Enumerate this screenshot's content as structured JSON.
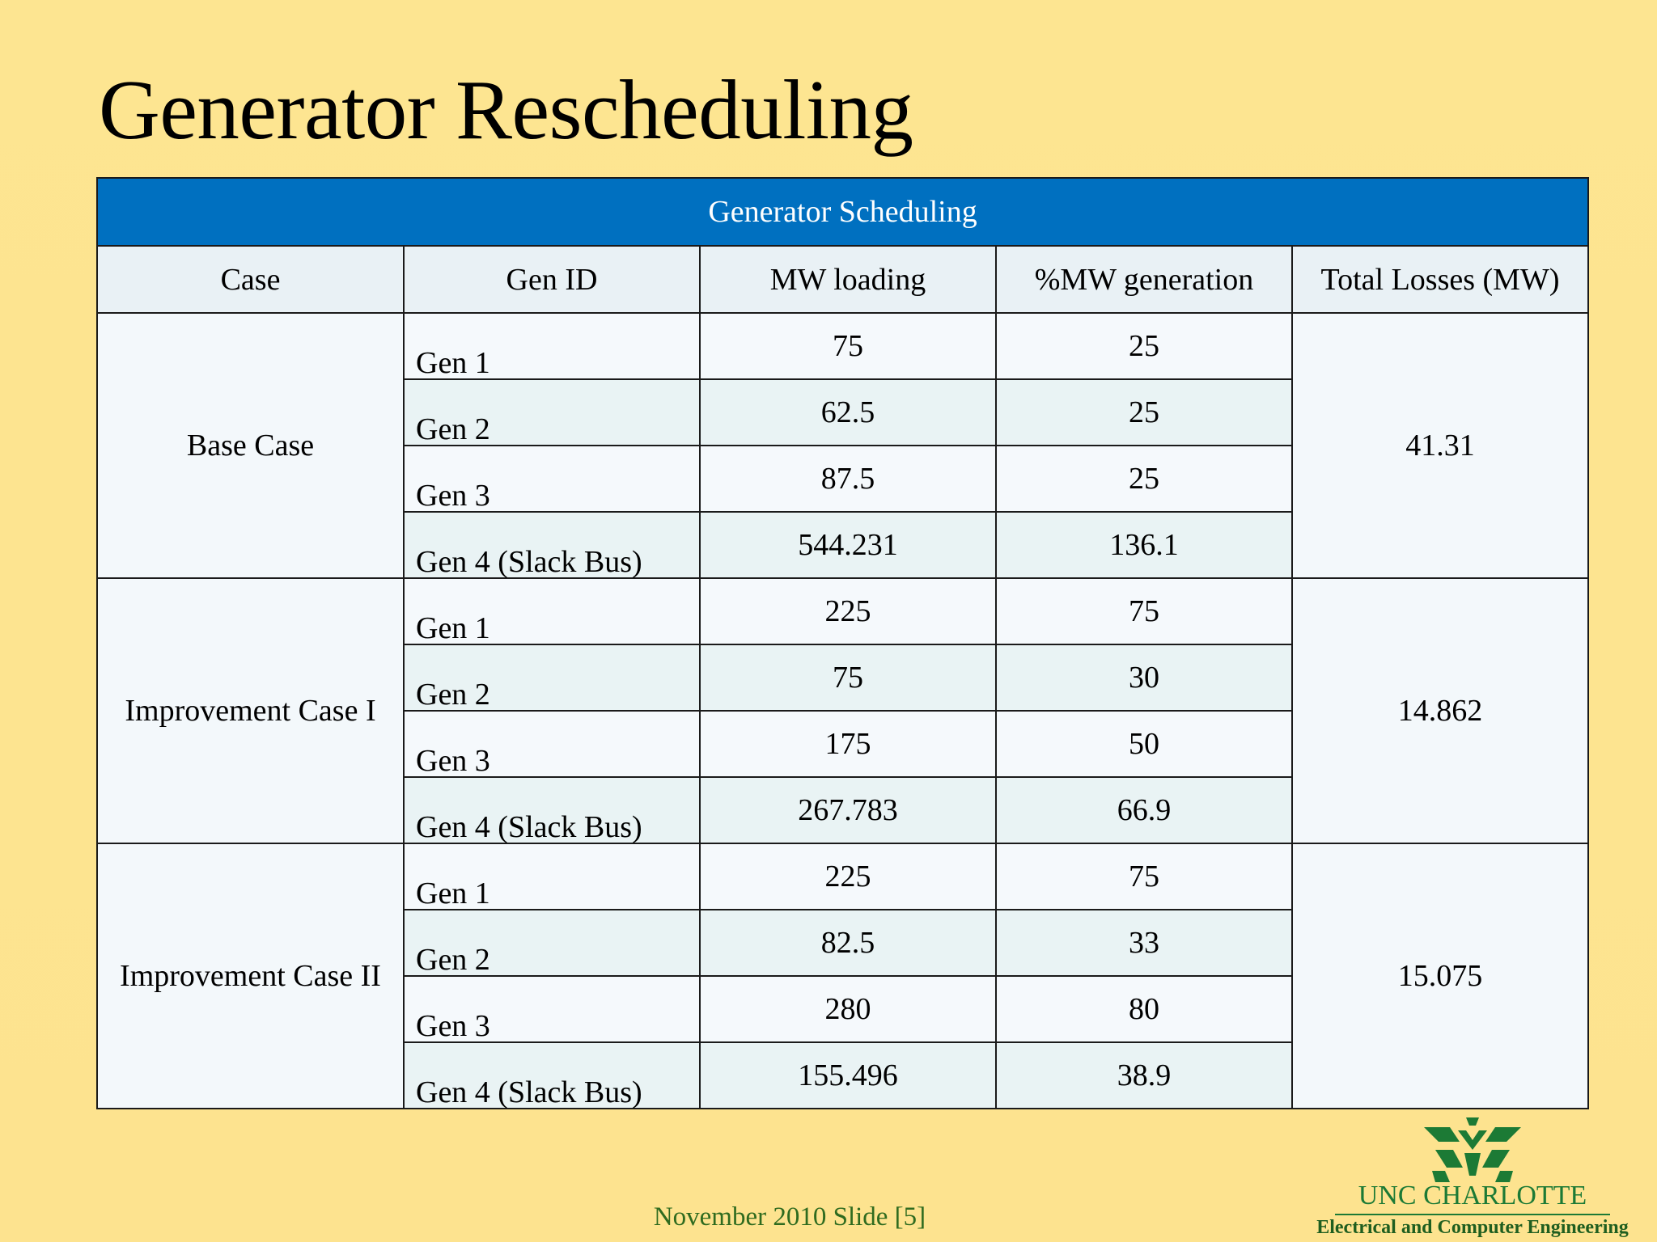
{
  "slide": {
    "title": "Generator Rescheduling",
    "footer": "November 2010 Slide [5]"
  },
  "table": {
    "caption": "Generator Scheduling",
    "headers": [
      "Case",
      "Gen ID",
      "MW loading",
      "%MW generation",
      "Total Losses (MW)"
    ],
    "groups": [
      {
        "case": "Base Case",
        "total_losses": "41.31",
        "rows": [
          {
            "gen": "Gen 1",
            "mw": "75",
            "pct": "25"
          },
          {
            "gen": "Gen 2",
            "mw": "62.5",
            "pct": "25"
          },
          {
            "gen": "Gen 3",
            "mw": "87.5",
            "pct": "25"
          },
          {
            "gen": "Gen 4 (Slack Bus)",
            "mw": "544.231",
            "pct": "136.1"
          }
        ]
      },
      {
        "case": "Improvement Case I",
        "total_losses": "14.862",
        "rows": [
          {
            "gen": "Gen 1",
            "mw": "225",
            "pct": "75"
          },
          {
            "gen": "Gen 2",
            "mw": "75",
            "pct": "30"
          },
          {
            "gen": "Gen 3",
            "mw": "175",
            "pct": "50"
          },
          {
            "gen": "Gen 4 (Slack Bus)",
            "mw": "267.783",
            "pct": "66.9"
          }
        ]
      },
      {
        "case": "Improvement Case II",
        "total_losses": "15.075",
        "rows": [
          {
            "gen": "Gen 1",
            "mw": "225",
            "pct": "75"
          },
          {
            "gen": "Gen 2",
            "mw": "82.5",
            "pct": "33"
          },
          {
            "gen": "Gen 3",
            "mw": "280",
            "pct": "80"
          },
          {
            "gen": "Gen 4 (Slack Bus)",
            "mw": "155.496",
            "pct": "38.9"
          }
        ]
      }
    ]
  },
  "logo": {
    "name": "UNC CHARLOTTE",
    "department": "Electrical and Computer Engineering",
    "color": "#1c7a35"
  },
  "colors": {
    "banner": "#0070c0",
    "background": "#fde591",
    "footer_text": "#2f6b1f"
  }
}
